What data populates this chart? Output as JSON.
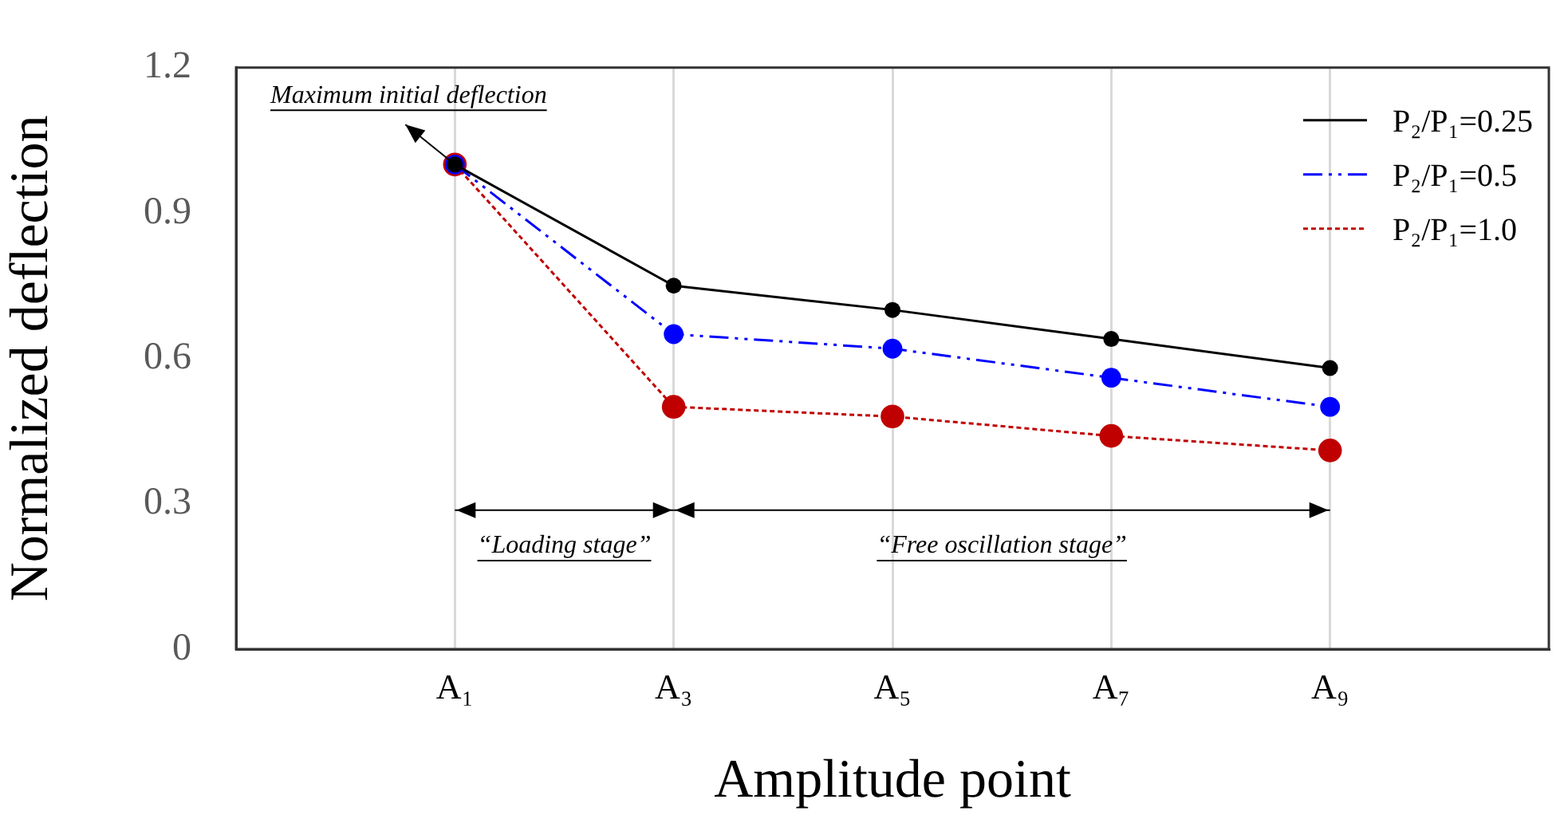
{
  "chart_data": {
    "type": "line",
    "xlabel": "Amplitude point",
    "ylabel": "Normalized deflection",
    "categories": [
      null,
      "A₁",
      "A₃",
      "A₅",
      "A₇",
      "A₉",
      null
    ],
    "series": [
      {
        "name": "P₂/P₁=0.25",
        "color": "#000000",
        "line_style": "solid",
        "values": [
          null,
          1.0,
          0.75,
          0.7,
          0.64,
          0.58,
          null
        ]
      },
      {
        "name": "P₂/P₁=0.5",
        "color": "#0000ff",
        "line_style": "dashed",
        "values": [
          null,
          1.0,
          0.65,
          0.62,
          0.56,
          0.5,
          null
        ]
      },
      {
        "name": "P₂/P₁=1.0",
        "color": "#c00000",
        "line_style": "dotted",
        "values": [
          null,
          1.0,
          0.5,
          0.48,
          0.44,
          0.41,
          null
        ]
      }
    ],
    "ylim": [
      0,
      1.2
    ],
    "yticks": [
      0,
      0.3,
      0.6,
      0.9,
      1.2
    ],
    "grid": "x",
    "legend": "top right",
    "marker": "circle",
    "annotations": [
      {
        "text": "Maximum initial deflection",
        "x": "A₁",
        "y": 1.0
      },
      "“Loading stage”",
      "“Free oscillation stage”"
    ]
  }
}
